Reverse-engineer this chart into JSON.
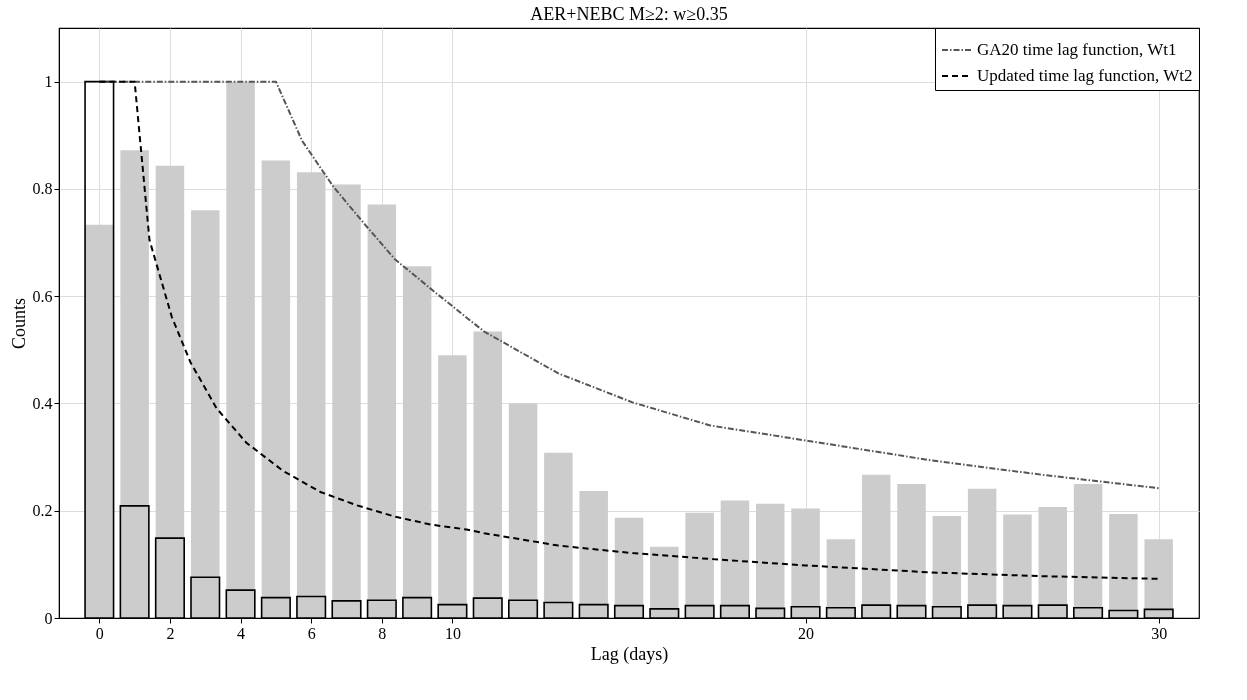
{
  "chart_data": {
    "type": "bar",
    "title": "AER+NEBC M≥2: w≥0.35",
    "xlabel": "Lag (days)",
    "ylabel": "Counts",
    "x": [
      0,
      1,
      2,
      3,
      4,
      5,
      6,
      7,
      8,
      9,
      10,
      11,
      12,
      13,
      14,
      15,
      16,
      17,
      18,
      19,
      20,
      21,
      22,
      23,
      24,
      25,
      26,
      27,
      28,
      29,
      30
    ],
    "series": [
      {
        "color": "#cccccc",
        "values": [
          0.733,
          0.872,
          0.843,
          0.76,
          1.0,
          0.853,
          0.831,
          0.808,
          0.771,
          0.656,
          0.49,
          0.534,
          0.4,
          0.308,
          0.237,
          0.187,
          0.133,
          0.196,
          0.219,
          0.213,
          0.204,
          0.147,
          0.267,
          0.25,
          0.19,
          0.241,
          0.193,
          0.207,
          0.25,
          0.194,
          0.147
        ]
      },
      {
        "color": "#000000",
        "values": [
          1.0,
          0.209,
          0.149,
          0.076,
          0.052,
          0.038,
          0.04,
          0.032,
          0.033,
          0.038,
          0.025,
          0.037,
          0.033,
          0.029,
          0.025,
          0.023,
          0.017,
          0.023,
          0.023,
          0.018,
          0.021,
          0.019,
          0.024,
          0.023,
          0.021,
          0.024,
          0.023,
          0.024,
          0.019,
          0.014,
          0.016
        ]
      },
      {
        "type": "line",
        "name": "GA20 time lag function, Wt1",
        "color": "#555555",
        "line_style": "dashdot",
        "x": [
          0,
          5,
          5.74,
          6.63,
          7.53,
          8.37,
          9.42,
          10.42,
          10.9,
          13.0,
          15.1,
          17.3,
          20,
          23.55,
          26.7,
          30
        ],
        "values": [
          1,
          1,
          0.89,
          0.804,
          0.733,
          0.669,
          0.612,
          0.559,
          0.534,
          0.456,
          0.402,
          0.359,
          0.331,
          0.294,
          0.267,
          0.242
        ]
      },
      {
        "type": "line",
        "name": "Updated time lag function, Wt2",
        "color": "#000000",
        "line_style": "dashed",
        "x": [
          0,
          1,
          1.42,
          2.05,
          2.58,
          3.32,
          4.16,
          5.21,
          6.26,
          7.3,
          8.37,
          9.4,
          10.4,
          10.9,
          13.0,
          15.1,
          17.3,
          20,
          23.55,
          26.7,
          30
        ],
        "values": [
          1,
          1,
          0.705,
          0.562,
          0.477,
          0.391,
          0.327,
          0.274,
          0.235,
          0.21,
          0.189,
          0.174,
          0.165,
          0.158,
          0.135,
          0.121,
          0.11,
          0.098,
          0.085,
          0.078,
          0.073
        ]
      }
    ],
    "xlim": [
      -1,
      31
    ],
    "ylim": [
      0,
      1.1
    ],
    "xticks": [
      0,
      2,
      4,
      6,
      8,
      10,
      20,
      30
    ],
    "yticks": [
      0,
      0.2,
      0.4,
      0.6,
      0.8,
      1
    ],
    "grid": true,
    "legend": "top right"
  }
}
